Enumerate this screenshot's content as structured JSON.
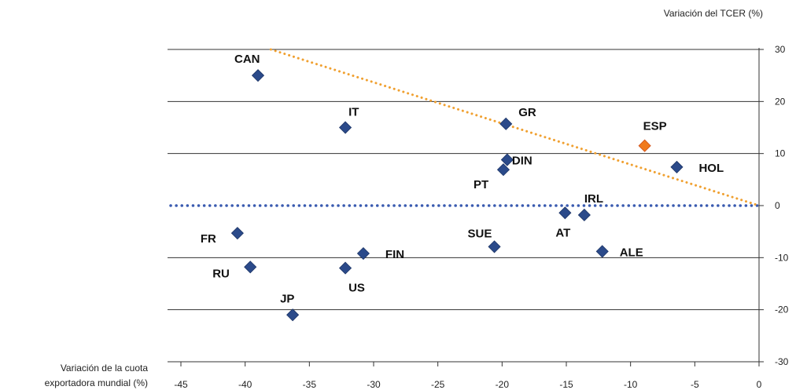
{
  "chart_data": {
    "type": "scatter",
    "xlabel_lines": [
      "Variación de la cuota",
      "exportadora mundial (%)"
    ],
    "ylabel": "Variación del TCER (%)",
    "xlim": [
      -45,
      0
    ],
    "ylim": [
      -30,
      30
    ],
    "x_ticks": [
      "-45",
      "-40",
      "-35",
      "-30",
      "-25",
      "-20",
      "-15",
      "-10",
      "-5",
      "0"
    ],
    "y_ticks": [
      "30",
      "20",
      "10",
      "0",
      "-10",
      "-20",
      "-30"
    ],
    "grid": true,
    "point_color": "#2b4a8a",
    "highlight_color": "#f07a1e",
    "trend_color": "#f0a030",
    "zero_line_color": "#3a5bb0",
    "points": [
      {
        "label": "CAN",
        "x": -39.0,
        "y": 25.0,
        "highlight": false
      },
      {
        "label": "IT",
        "x": -32.2,
        "y": 15.0,
        "highlight": false
      },
      {
        "label": "GR",
        "x": -19.7,
        "y": 15.7,
        "highlight": false
      },
      {
        "label": "ESP",
        "x": -8.9,
        "y": 11.5,
        "highlight": true
      },
      {
        "label": "DIN",
        "x": -19.6,
        "y": 8.8,
        "highlight": false
      },
      {
        "label": "HOL",
        "x": -6.4,
        "y": 7.4,
        "highlight": false
      },
      {
        "label": "PT",
        "x": -19.9,
        "y": 6.9,
        "highlight": false
      },
      {
        "label": "IRL",
        "x": -13.6,
        "y": -1.8,
        "highlight": false
      },
      {
        "label": "AT",
        "x": -15.1,
        "y": -1.4,
        "highlight": false
      },
      {
        "label": "FR",
        "x": -40.6,
        "y": -5.3,
        "highlight": false
      },
      {
        "label": "SUE",
        "x": -20.6,
        "y": -7.9,
        "highlight": false
      },
      {
        "label": "FIN",
        "x": -30.8,
        "y": -9.2,
        "highlight": false
      },
      {
        "label": "ALE",
        "x": -12.2,
        "y": -8.8,
        "highlight": false
      },
      {
        "label": "RU",
        "x": -39.6,
        "y": -11.8,
        "highlight": false
      },
      {
        "label": "US",
        "x": -32.2,
        "y": -12.0,
        "highlight": false
      },
      {
        "label": "JP",
        "x": -36.3,
        "y": -21.0,
        "highlight": false
      }
    ],
    "trend_line": {
      "x1": -38.0,
      "y1": 30.0,
      "x2": 0.0,
      "y2": 0.0
    }
  }
}
